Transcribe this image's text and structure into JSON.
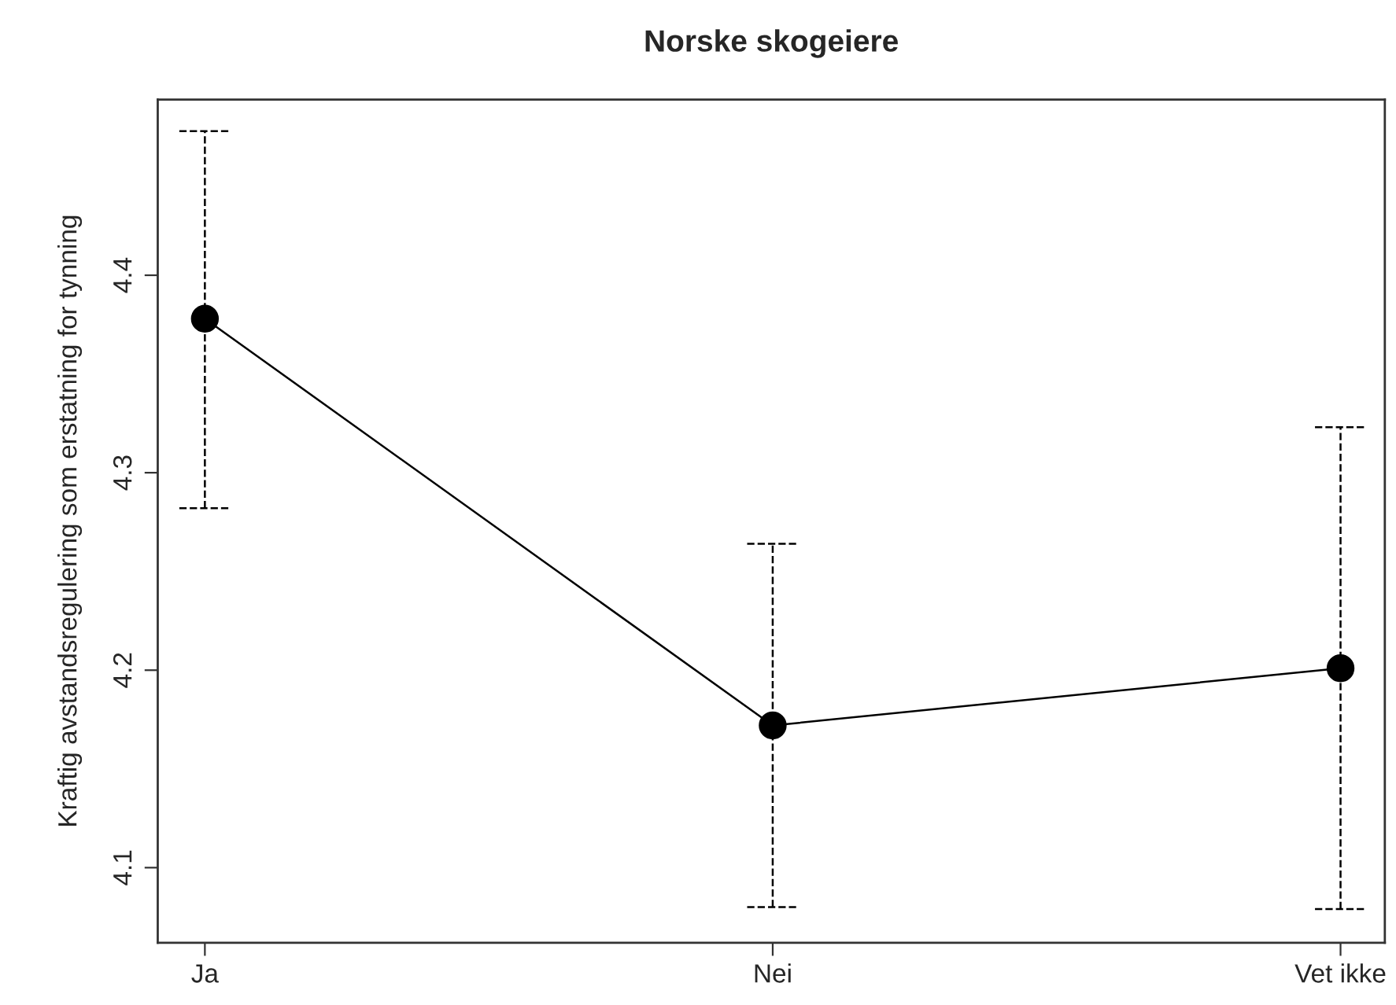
{
  "chart_data": {
    "type": "line",
    "title": "Norske skogeiere",
    "ylabel": "Kraftig avstandsregulering som erstatning for tynning",
    "categories": [
      "Ja",
      "Nei",
      "Vet ikke"
    ],
    "series": [
      {
        "color": "#000000",
        "values": [
          4.378,
          4.172,
          4.201
        ],
        "errors": [
          [
            4.282,
            4.473
          ],
          [
            4.08,
            4.264
          ],
          [
            4.079,
            4.323
          ]
        ]
      }
    ],
    "ylim": [
      4.062,
      4.489
    ],
    "yticks": [
      4.1,
      4.2,
      4.3,
      4.4
    ],
    "grid": false,
    "legend": false,
    "marker": "circle",
    "line_style": "solid"
  }
}
